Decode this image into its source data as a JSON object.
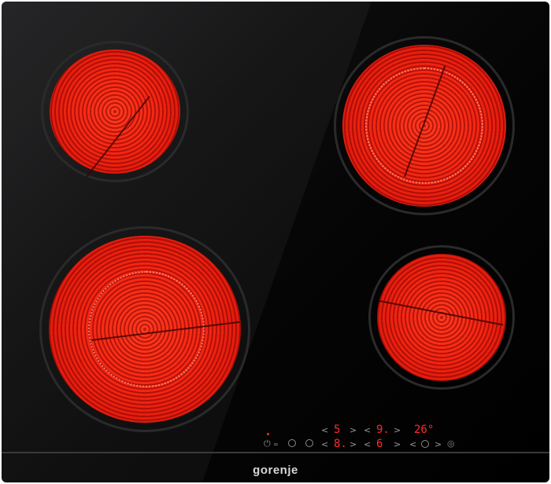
{
  "brand": {
    "logo_text": "gorenje"
  },
  "zones": [
    {
      "id": "rear-left",
      "state": "on",
      "heat_color": "#f62713"
    },
    {
      "id": "front-left",
      "state": "on",
      "dual_ring": true,
      "heat_color": "#f62713"
    },
    {
      "id": "rear-right",
      "state": "on",
      "dual_ring": true,
      "heat_color": "#f62713"
    },
    {
      "id": "front-right",
      "state": "on",
      "heat_color": "#f62713"
    }
  ],
  "controls": {
    "display_top_left": "5",
    "display_top_middle": "9.",
    "display_timer": "26°",
    "display_bottom_left": "8.",
    "display_bottom_middle": "6",
    "chevron_left": "<",
    "chevron_right": ">",
    "icons": [
      "power-icon",
      "lock-icon",
      "keep-warm-icon",
      "pause-icon",
      "timer-icon",
      "stopwatch-icon"
    ],
    "segment_color": "#ff2a2a"
  }
}
